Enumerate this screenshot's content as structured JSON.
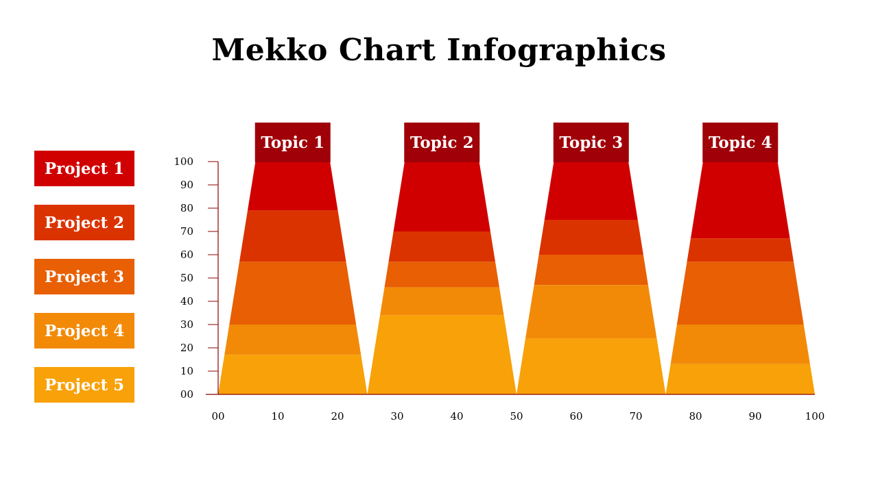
{
  "title": "Mekko Chart Infographics",
  "legend": [
    {
      "label": "Project 1",
      "color": "#D10000"
    },
    {
      "label": "Project 2",
      "color": "#DB3300"
    },
    {
      "label": "Project 3",
      "color": "#E85F04"
    },
    {
      "label": "Project 4",
      "color": "#F28A08"
    },
    {
      "label": "Project 5",
      "color": "#F8A108"
    }
  ],
  "chart_data": {
    "type": "mekko",
    "title": "Mekko Chart Infographics",
    "xlim": [
      0,
      100
    ],
    "ylim": [
      0,
      100
    ],
    "x_ticks": [
      "00",
      "10",
      "20",
      "30",
      "40",
      "50",
      "60",
      "70",
      "80",
      "90",
      "100"
    ],
    "y_ticks": [
      "00",
      "10",
      "20",
      "30",
      "40",
      "50",
      "60",
      "70",
      "80",
      "90",
      "100"
    ],
    "topic_header_color": "#A00008",
    "axis_color": "#8B0000",
    "series_names": [
      "Project 1",
      "Project 2",
      "Project 3",
      "Project 4",
      "Project 5"
    ],
    "topics": [
      {
        "label": "Topic 1",
        "x_start": 0,
        "x_end": 25,
        "bounds": [
          0,
          17,
          30,
          57,
          79,
          100
        ]
      },
      {
        "label": "Topic 2",
        "x_start": 25,
        "x_end": 50,
        "bounds": [
          0,
          34,
          46,
          57,
          70,
          100
        ]
      },
      {
        "label": "Topic 3",
        "x_start": 50,
        "x_end": 75,
        "bounds": [
          0,
          24,
          47,
          60,
          75,
          100
        ]
      },
      {
        "label": "Topic 4",
        "x_start": 75,
        "x_end": 100,
        "bounds": [
          0,
          13,
          30,
          57,
          67,
          100
        ]
      }
    ]
  }
}
